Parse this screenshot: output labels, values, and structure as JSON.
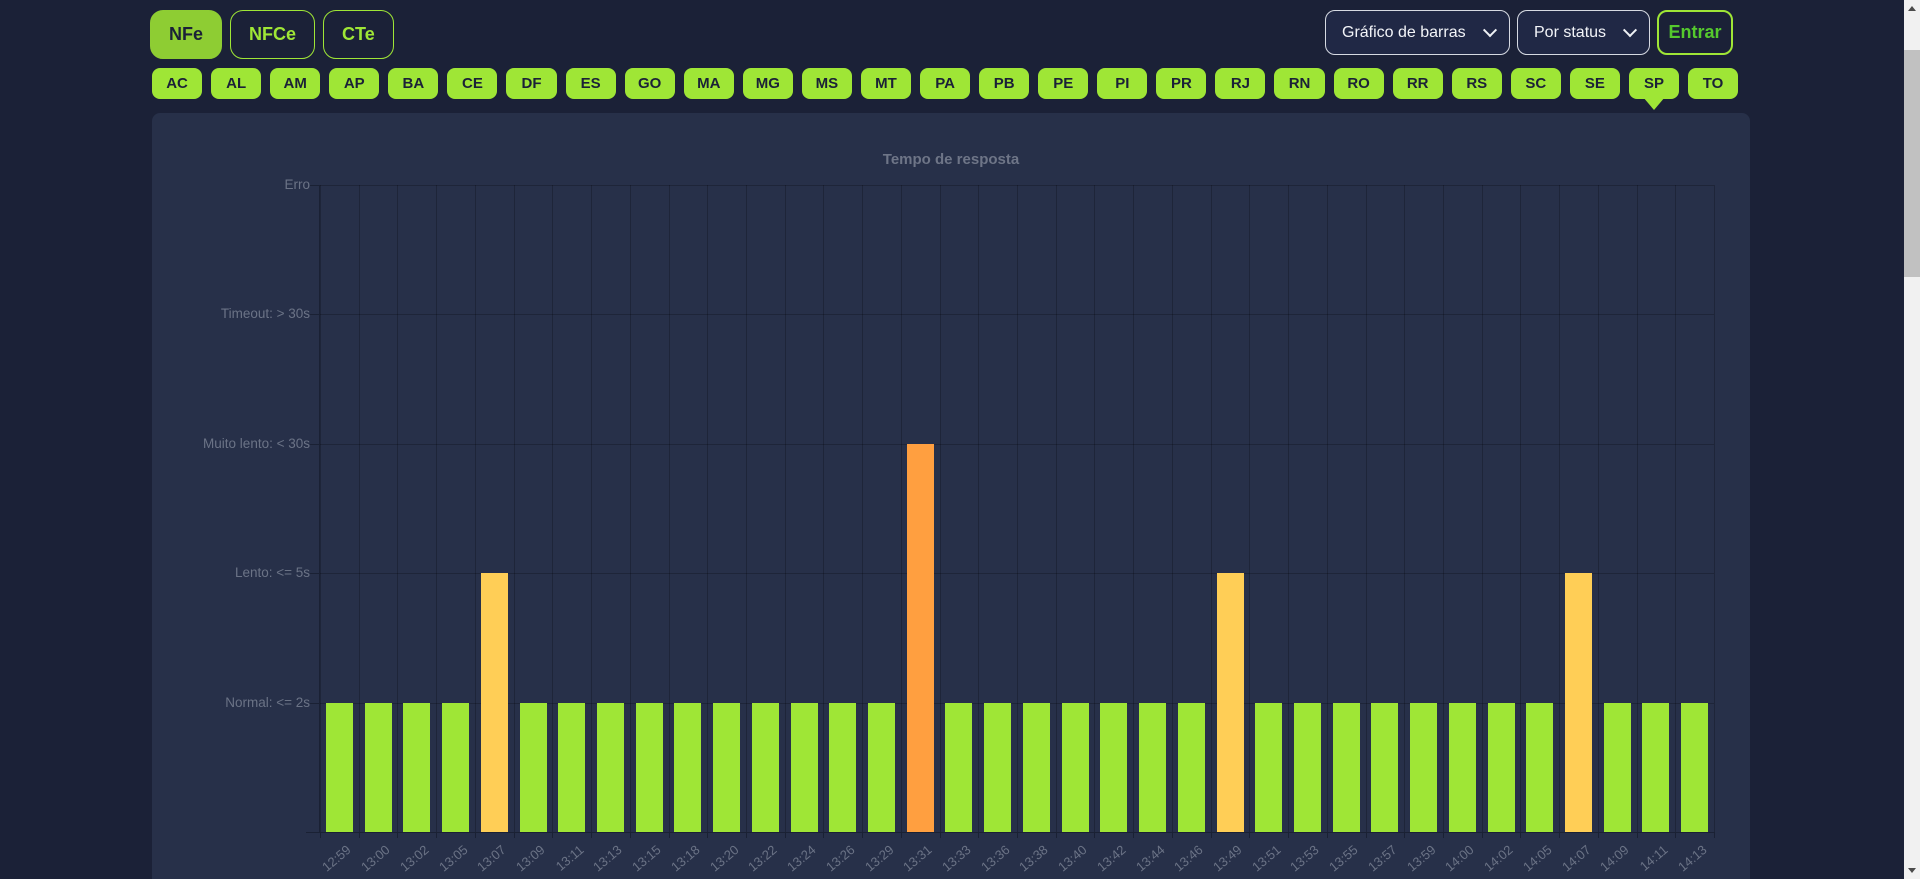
{
  "colors": {
    "accent_lime": "#9fe636",
    "active_tab_lime": "#8ecd33",
    "page_bg": "#1b2137",
    "panel_bg": "#273049",
    "status_normal": "#9fe636",
    "status_lento": "#ffce56",
    "status_muito_lento": "#ff9f40",
    "status_timeout": "#ff6b6b",
    "muted_text": "#6b7386"
  },
  "header": {
    "tabs": [
      {
        "label": "NFe",
        "active": true
      },
      {
        "label": "NFCe",
        "active": false
      },
      {
        "label": "CTe",
        "active": false
      }
    ],
    "chart_type_select": {
      "value": "Gráfico de barras"
    },
    "group_select": {
      "value": "Por status"
    },
    "login_button": "Entrar"
  },
  "states": {
    "selected": "SP",
    "items": [
      "AC",
      "AL",
      "AM",
      "AP",
      "BA",
      "CE",
      "DF",
      "ES",
      "GO",
      "MA",
      "MG",
      "MS",
      "MT",
      "PA",
      "PB",
      "PE",
      "PI",
      "PR",
      "RJ",
      "RN",
      "RO",
      "RR",
      "RS",
      "SC",
      "SE",
      "SP",
      "TO"
    ]
  },
  "chart_data": {
    "type": "bar",
    "title": "Tempo de resposta",
    "xlabel": "",
    "ylabel": "",
    "ylim": [
      0,
      5
    ],
    "grid": true,
    "legend": "none",
    "y_levels": [
      {
        "label": "Erro",
        "value": 5
      },
      {
        "label": "Timeout: > 30s",
        "value": 4
      },
      {
        "label": "Muito lento: < 30s",
        "value": 3
      },
      {
        "label": "Lento: <= 5s",
        "value": 2
      },
      {
        "label": "Normal: <= 2s",
        "value": 1
      }
    ],
    "categories": [
      "12:59",
      "13:00",
      "13:02",
      "13:05",
      "13:07",
      "13:09",
      "13:11",
      "13:13",
      "13:15",
      "13:18",
      "13:20",
      "13:22",
      "13:24",
      "13:26",
      "13:29",
      "13:31",
      "13:33",
      "13:36",
      "13:38",
      "13:40",
      "13:42",
      "13:44",
      "13:46",
      "13:49",
      "13:51",
      "13:53",
      "13:55",
      "13:57",
      "13:59",
      "14:00",
      "14:02",
      "14:05",
      "14:07",
      "14:09",
      "14:11",
      "14:13"
    ],
    "statuses": [
      "normal",
      "normal",
      "normal",
      "normal",
      "lento",
      "normal",
      "normal",
      "normal",
      "normal",
      "normal",
      "normal",
      "normal",
      "normal",
      "normal",
      "normal",
      "muito_lento",
      "normal",
      "normal",
      "normal",
      "normal",
      "normal",
      "normal",
      "normal",
      "lento",
      "normal",
      "normal",
      "normal",
      "normal",
      "normal",
      "normal",
      "normal",
      "normal",
      "lento",
      "normal",
      "normal",
      "normal"
    ],
    "status_values": {
      "normal": 1,
      "lento": 2,
      "muito_lento": 3,
      "timeout": 4,
      "erro": 5
    }
  }
}
